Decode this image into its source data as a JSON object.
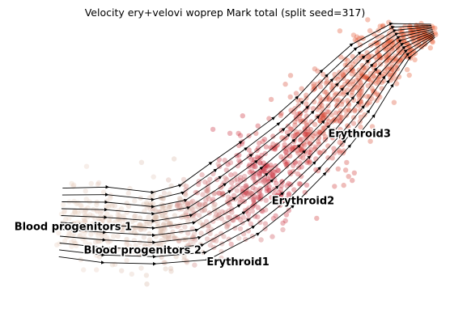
{
  "chart_data": {
    "type": "scatter",
    "title": "Velocity ery+velovi woprep Mark total (split seed=317)",
    "xlabel": "",
    "ylabel": "",
    "axes_visible": false,
    "grid": false,
    "legend": "none",
    "overlay": "velocity streamlines with arrowheads (black)",
    "clusters": [
      {
        "name": "Blood progenitors 1",
        "color": "#ecd6c8",
        "label_at": [
          0.15,
          0.33
        ]
      },
      {
        "name": "Blood progenitors 2",
        "color": "#d7b8a8",
        "label_at": [
          0.31,
          0.25
        ]
      },
      {
        "name": "Erythroid1",
        "color": "#c8283a",
        "label_at": [
          0.53,
          0.21
        ]
      },
      {
        "name": "Erythroid2",
        "color": "#d9523a",
        "label_at": [
          0.68,
          0.42
        ]
      },
      {
        "name": "Erythroid3",
        "color": "#ec5a2c",
        "label_at": [
          0.81,
          0.65
        ]
      }
    ]
  }
}
